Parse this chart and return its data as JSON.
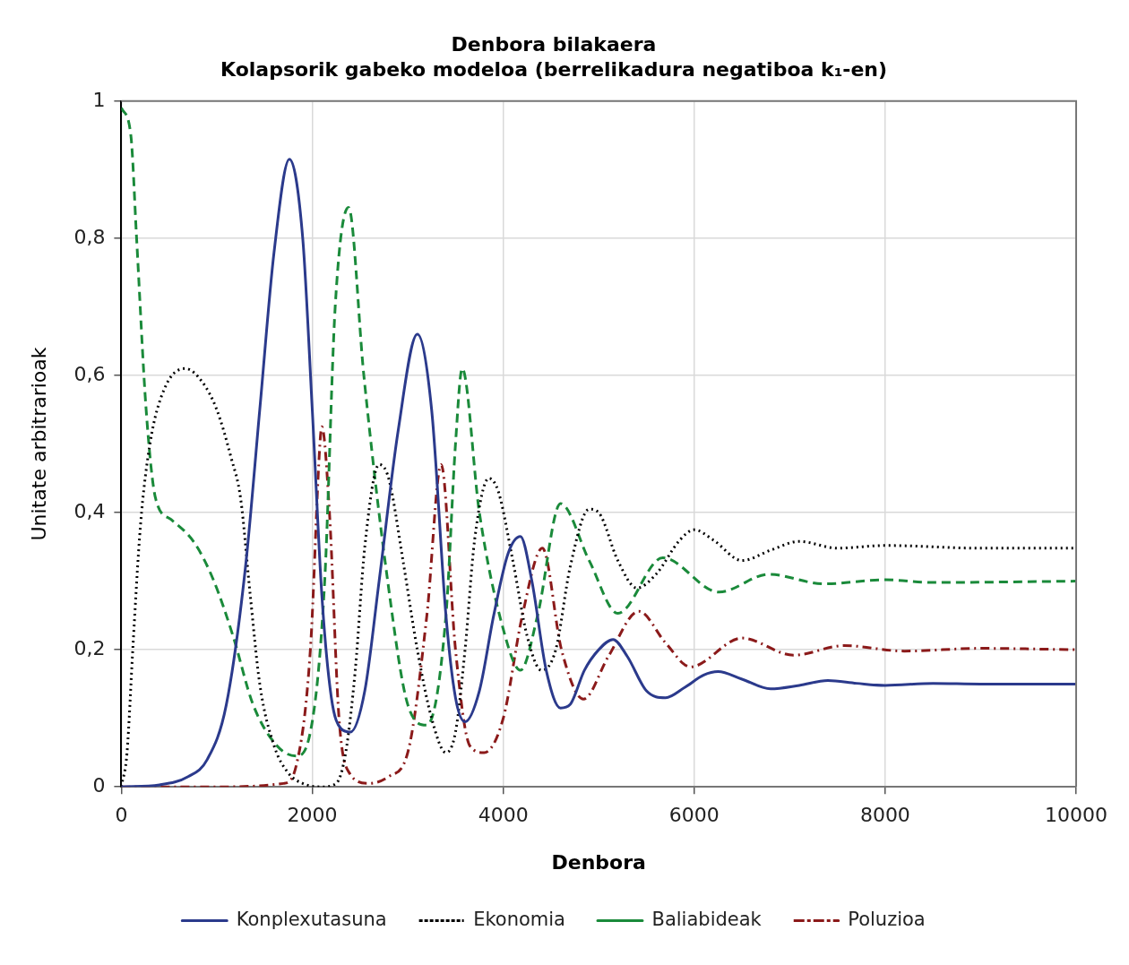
{
  "chart_data": {
    "type": "line",
    "title": "Denbora bilakaera",
    "subtitle": "Kolapsorik gabeko modeloa (berrelikadura negatiboa k₁-en)",
    "xlabel": "Denbora",
    "ylabel": "Unitate arbitrarioak",
    "xlim": [
      0,
      10000
    ],
    "xticks": [
      0,
      2000,
      4000,
      6000,
      8000,
      10000
    ],
    "ylim": [
      0,
      1
    ],
    "yticks": [
      0,
      {
        "value": 0.2,
        "label": "0,2"
      },
      {
        "value": 0.4,
        "label": "0,4"
      },
      {
        "value": 0.6,
        "label": "0,6"
      },
      {
        "value": 0.8,
        "label": "0,8"
      },
      1
    ],
    "grid": true,
    "legend": "bottom",
    "marker": "none",
    "series": [
      {
        "name": "Konplexutasuna",
        "color": "#2b3a8c",
        "line_style": "solid",
        "x": [
          0,
          400,
          700,
          900,
          1100,
          1300,
          1450,
          1600,
          1760,
          1900,
          2000,
          2100,
          2200,
          2300,
          2400,
          2550,
          2700,
          2900,
          3100,
          3250,
          3400,
          3500,
          3600,
          3750,
          3900,
          4050,
          4180,
          4300,
          4450,
          4600,
          4700,
          4850,
          5000,
          5150,
          5300,
          5500,
          5700,
          5900,
          6100,
          6250,
          6500,
          6800,
          7100,
          7400,
          7700,
          8000,
          8500,
          9000,
          10000
        ],
        "values": [
          0,
          0.003,
          0.015,
          0.04,
          0.12,
          0.32,
          0.55,
          0.78,
          0.915,
          0.8,
          0.55,
          0.28,
          0.13,
          0.085,
          0.08,
          0.14,
          0.3,
          0.52,
          0.66,
          0.55,
          0.25,
          0.13,
          0.095,
          0.14,
          0.25,
          0.34,
          0.365,
          0.3,
          0.17,
          0.115,
          0.12,
          0.17,
          0.2,
          0.215,
          0.19,
          0.14,
          0.13,
          0.145,
          0.163,
          0.168,
          0.157,
          0.143,
          0.148,
          0.155,
          0.151,
          0.148,
          0.151,
          0.15,
          0.15
        ]
      },
      {
        "name": "Ekonomia",
        "color": "#000000",
        "line_style": "dotted",
        "x": [
          0,
          60,
          120,
          200,
          300,
          450,
          670,
          850,
          1000,
          1150,
          1250,
          1350,
          1450,
          1600,
          1750,
          1900,
          2100,
          2250,
          2350,
          2450,
          2550,
          2700,
          2800,
          2950,
          3100,
          3250,
          3400,
          3500,
          3600,
          3700,
          3850,
          3950,
          4100,
          4250,
          4400,
          4550,
          4700,
          4900,
          5000,
          5200,
          5400,
          5600,
          5850,
          6000,
          6200,
          6500,
          6800,
          7100,
          7500,
          8000,
          9000,
          10000
        ],
        "values": [
          0,
          0.05,
          0.2,
          0.38,
          0.5,
          0.58,
          0.61,
          0.59,
          0.55,
          0.48,
          0.42,
          0.28,
          0.15,
          0.06,
          0.02,
          0.005,
          0,
          0.005,
          0.05,
          0.17,
          0.35,
          0.47,
          0.45,
          0.33,
          0.2,
          0.1,
          0.05,
          0.08,
          0.2,
          0.36,
          0.45,
          0.43,
          0.33,
          0.22,
          0.17,
          0.2,
          0.32,
          0.405,
          0.4,
          0.33,
          0.29,
          0.31,
          0.36,
          0.375,
          0.36,
          0.33,
          0.345,
          0.358,
          0.348,
          0.352,
          0.348,
          0.348
        ]
      },
      {
        "name": "Baliabideak",
        "color": "#1a8a3a",
        "line_style": "dashed",
        "x": [
          0,
          100,
          160,
          260,
          360,
          520,
          770,
          970,
          1170,
          1380,
          1630,
          1830,
          1980,
          2130,
          2240,
          2380,
          2540,
          2790,
          3000,
          3200,
          3400,
          3500,
          3570,
          3750,
          4000,
          4180,
          4360,
          4600,
          4900,
          5200,
          5670,
          6260,
          6780,
          7360,
          8000,
          8500,
          10000
        ],
        "values": [
          0.99,
          0.95,
          0.8,
          0.55,
          0.42,
          0.39,
          0.355,
          0.3,
          0.22,
          0.12,
          0.06,
          0.045,
          0.08,
          0.3,
          0.7,
          0.845,
          0.6,
          0.3,
          0.12,
          0.09,
          0.25,
          0.5,
          0.61,
          0.4,
          0.23,
          0.17,
          0.25,
          0.413,
          0.33,
          0.253,
          0.334,
          0.284,
          0.31,
          0.296,
          0.302,
          0.298,
          0.3
        ]
      },
      {
        "name": "Poluzioa",
        "color": "#8b1a1a",
        "line_style": "dashdot",
        "x": [
          0,
          1000,
          1700,
          1830,
          1980,
          2080,
          2100,
          2180,
          2280,
          2390,
          2590,
          2800,
          3000,
          3200,
          3350,
          3500,
          3650,
          3800,
          4000,
          4200,
          4410,
          4610,
          4840,
          5100,
          5420,
          5700,
          5960,
          6500,
          7040,
          7570,
          8200,
          9000,
          10000
        ],
        "values": [
          0,
          0,
          0.005,
          0.03,
          0.2,
          0.5,
          0.525,
          0.4,
          0.1,
          0.02,
          0.005,
          0.015,
          0.05,
          0.25,
          0.47,
          0.2,
          0.06,
          0.05,
          0.1,
          0.25,
          0.348,
          0.2,
          0.128,
          0.19,
          0.256,
          0.21,
          0.175,
          0.217,
          0.192,
          0.206,
          0.198,
          0.202,
          0.2
        ]
      }
    ]
  }
}
